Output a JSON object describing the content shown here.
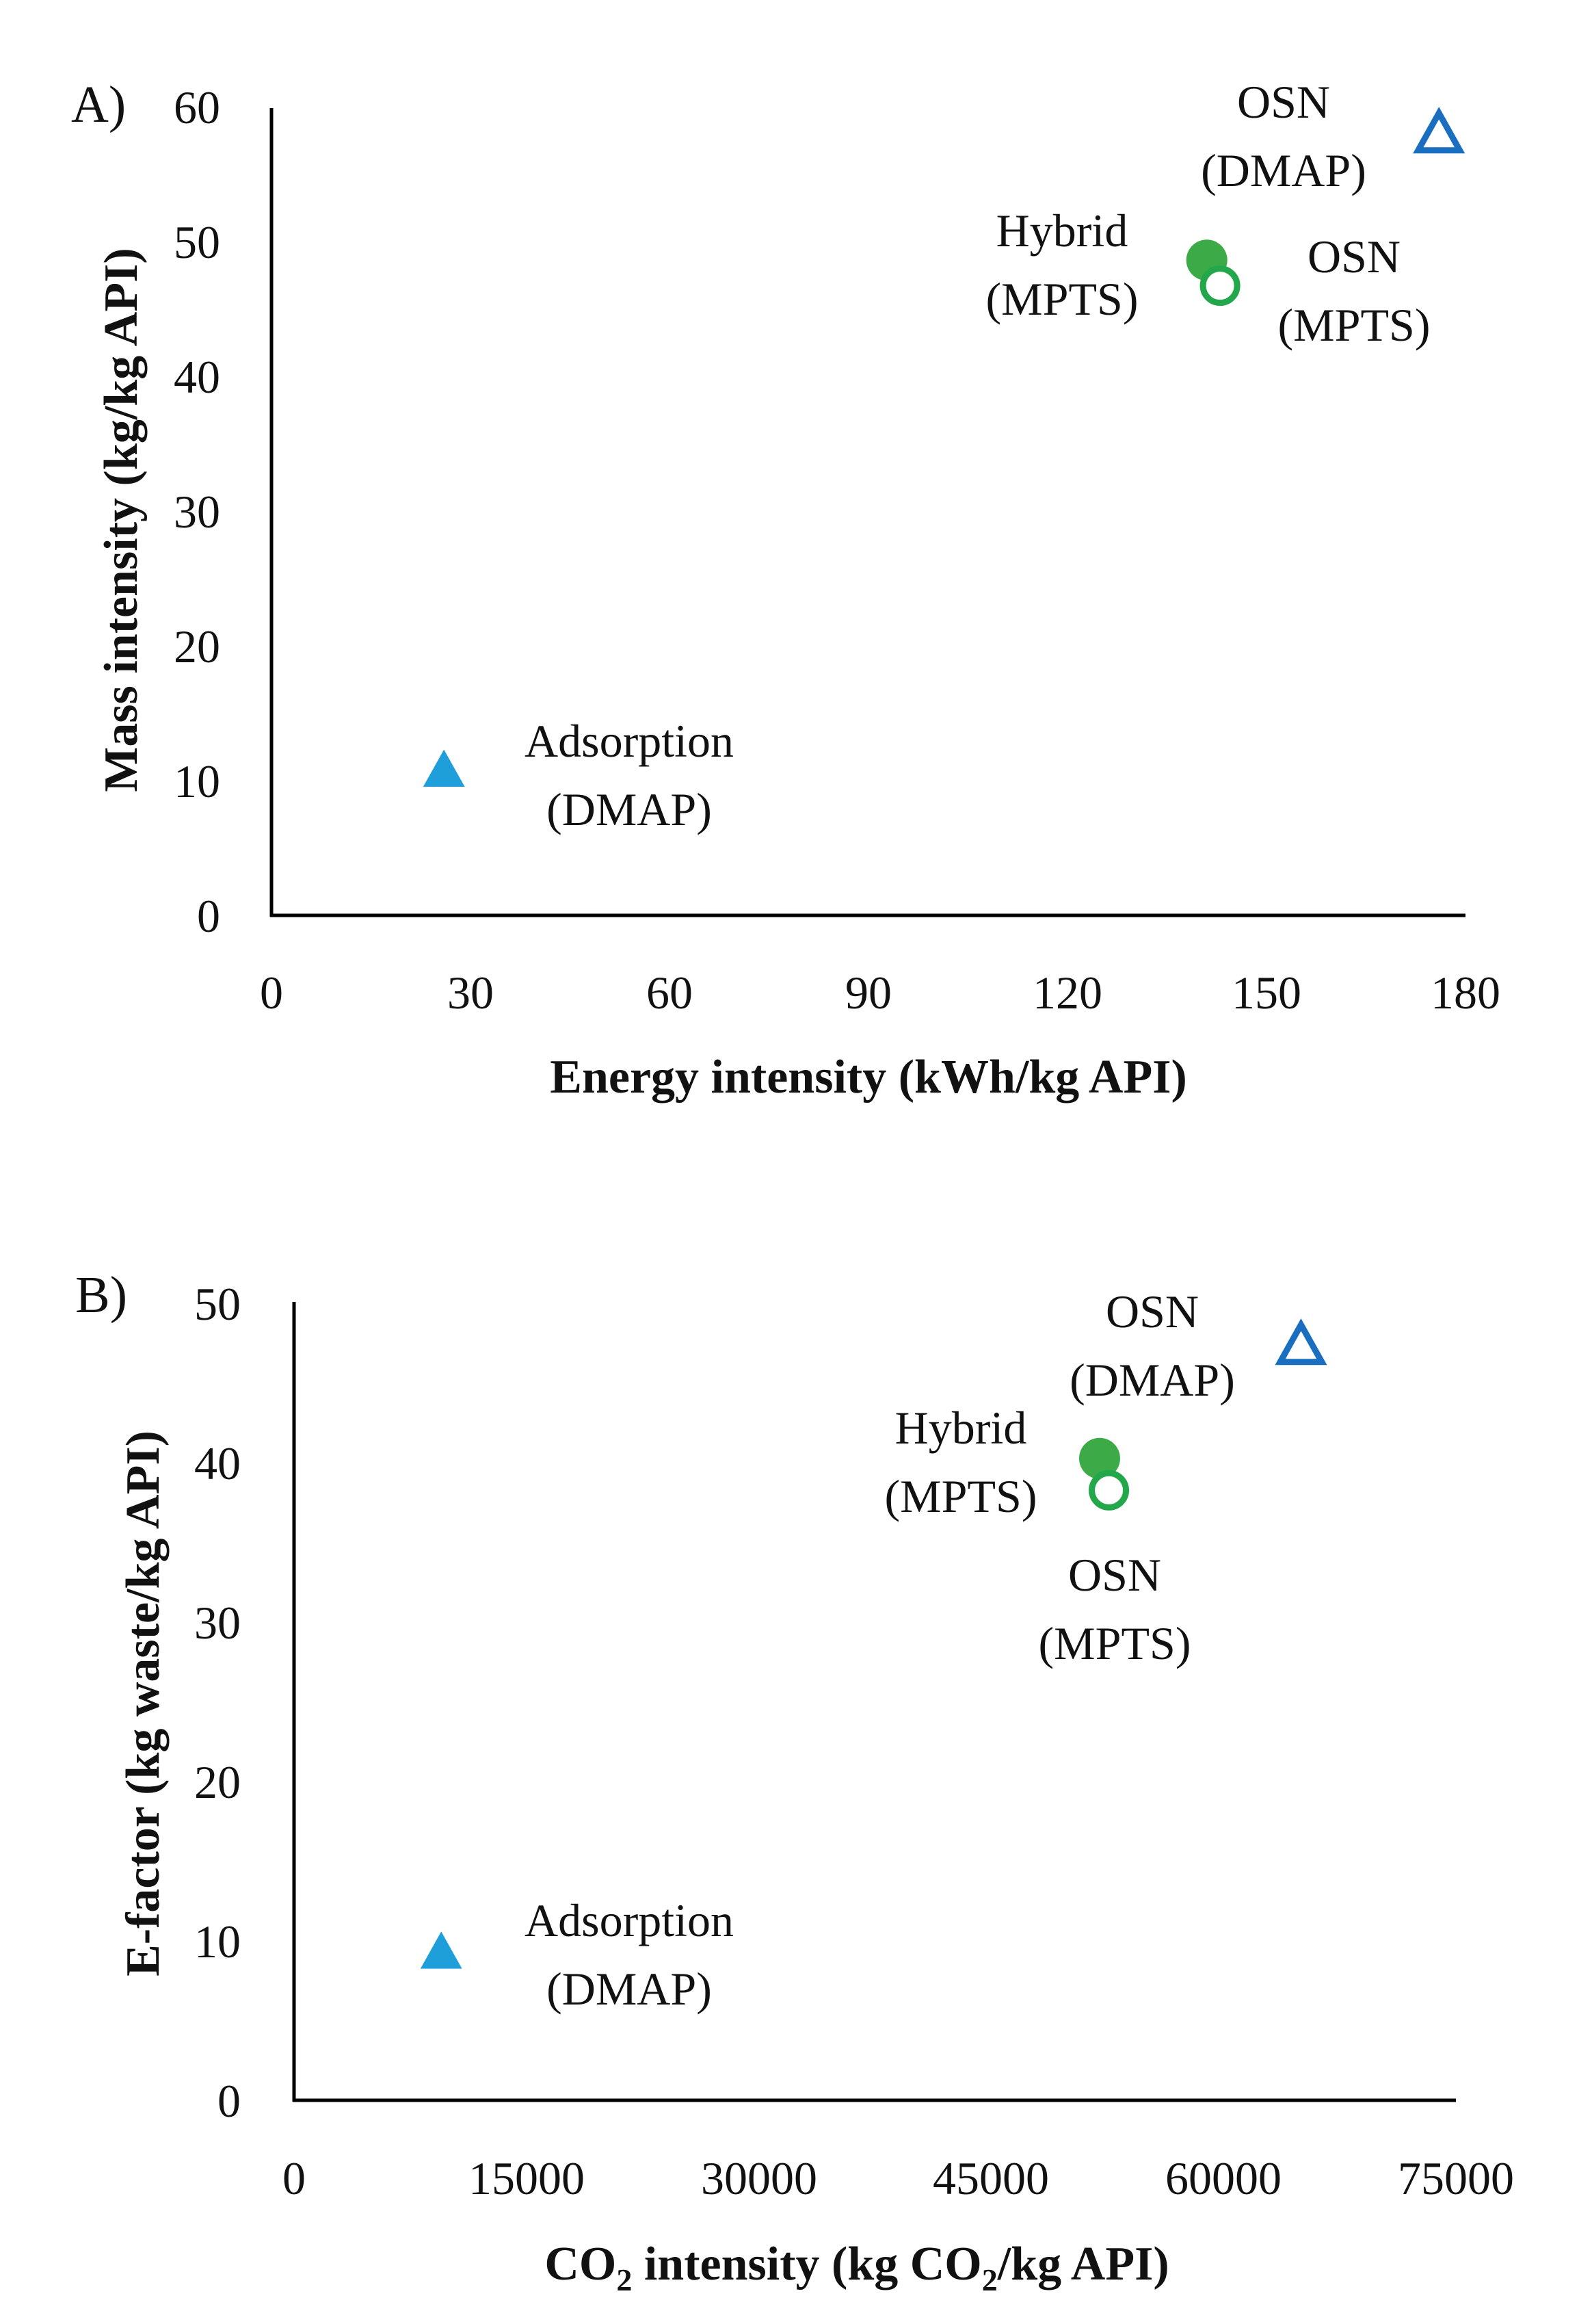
{
  "chart_data": [
    {
      "type": "scatter",
      "panel_label": "A)",
      "xlabel": "Energy intensity (kWh/kg API)",
      "ylabel": "Mass intensity (kg/kg API)",
      "xlim": [
        0,
        180
      ],
      "ylim": [
        0,
        60
      ],
      "xticks": [
        "0",
        "30",
        "60",
        "90",
        "120",
        "150",
        "180"
      ],
      "yticks": [
        "0",
        "10",
        "20",
        "30",
        "40",
        "50",
        "60"
      ],
      "points": [
        {
          "name": "Adsorption (DMAP)",
          "line1": "Adsorption",
          "line2": "(DMAP)",
          "x": 26,
          "y": 10.7,
          "marker": "triangle-filled",
          "color": "#1F9FD9"
        },
        {
          "name": "OSN (DMAP)",
          "line1": "OSN",
          "line2": "(DMAP)",
          "x": 176,
          "y": 58,
          "marker": "triangle-open",
          "color": "#1A6EC0"
        },
        {
          "name": "Hybrid (MPTS)",
          "line1": "Hybrid",
          "line2": "(MPTS)",
          "x": 141,
          "y": 48.7,
          "marker": "circle-filled",
          "color": "#3DAA48"
        },
        {
          "name": "OSN (MPTS)",
          "line1": "OSN",
          "line2": "(MPTS)",
          "x": 143,
          "y": 46.8,
          "marker": "circle-open",
          "color": "#22A84A"
        }
      ]
    },
    {
      "type": "scatter",
      "panel_label": "B)",
      "xlabel": {
        "pre": "CO",
        "sub": "2",
        "mid": " intensity (kg CO",
        "sub2": "2",
        "post": "/kg API)"
      },
      "ylabel": "E-factor (kg waste/kg API)",
      "xlim": [
        0,
        75000
      ],
      "ylim": [
        0,
        50
      ],
      "xticks": [
        "0",
        "15000",
        "30000",
        "45000",
        "60000",
        "75000"
      ],
      "yticks": [
        "0",
        "10",
        "20",
        "30",
        "40",
        "50"
      ],
      "points": [
        {
          "name": "Adsorption (DMAP)",
          "line1": "Adsorption",
          "line2": "(DMAP)",
          "x": 9500,
          "y": 9.2,
          "marker": "triangle-filled",
          "color": "#1F9FD9"
        },
        {
          "name": "OSN (DMAP)",
          "line1": "OSN",
          "line2": "(DMAP)",
          "x": 65000,
          "y": 47.2,
          "marker": "triangle-open",
          "color": "#1A6EC0"
        },
        {
          "name": "Hybrid (MPTS)",
          "line1": "Hybrid",
          "line2": "(MPTS)",
          "x": 52000,
          "y": 40.2,
          "marker": "circle-filled",
          "color": "#3DAA48"
        },
        {
          "name": "OSN (MPTS)",
          "line1": "OSN",
          "line2": "(MPTS)",
          "x": 52600,
          "y": 38.2,
          "marker": "circle-open",
          "color": "#22A84A"
        }
      ]
    }
  ]
}
